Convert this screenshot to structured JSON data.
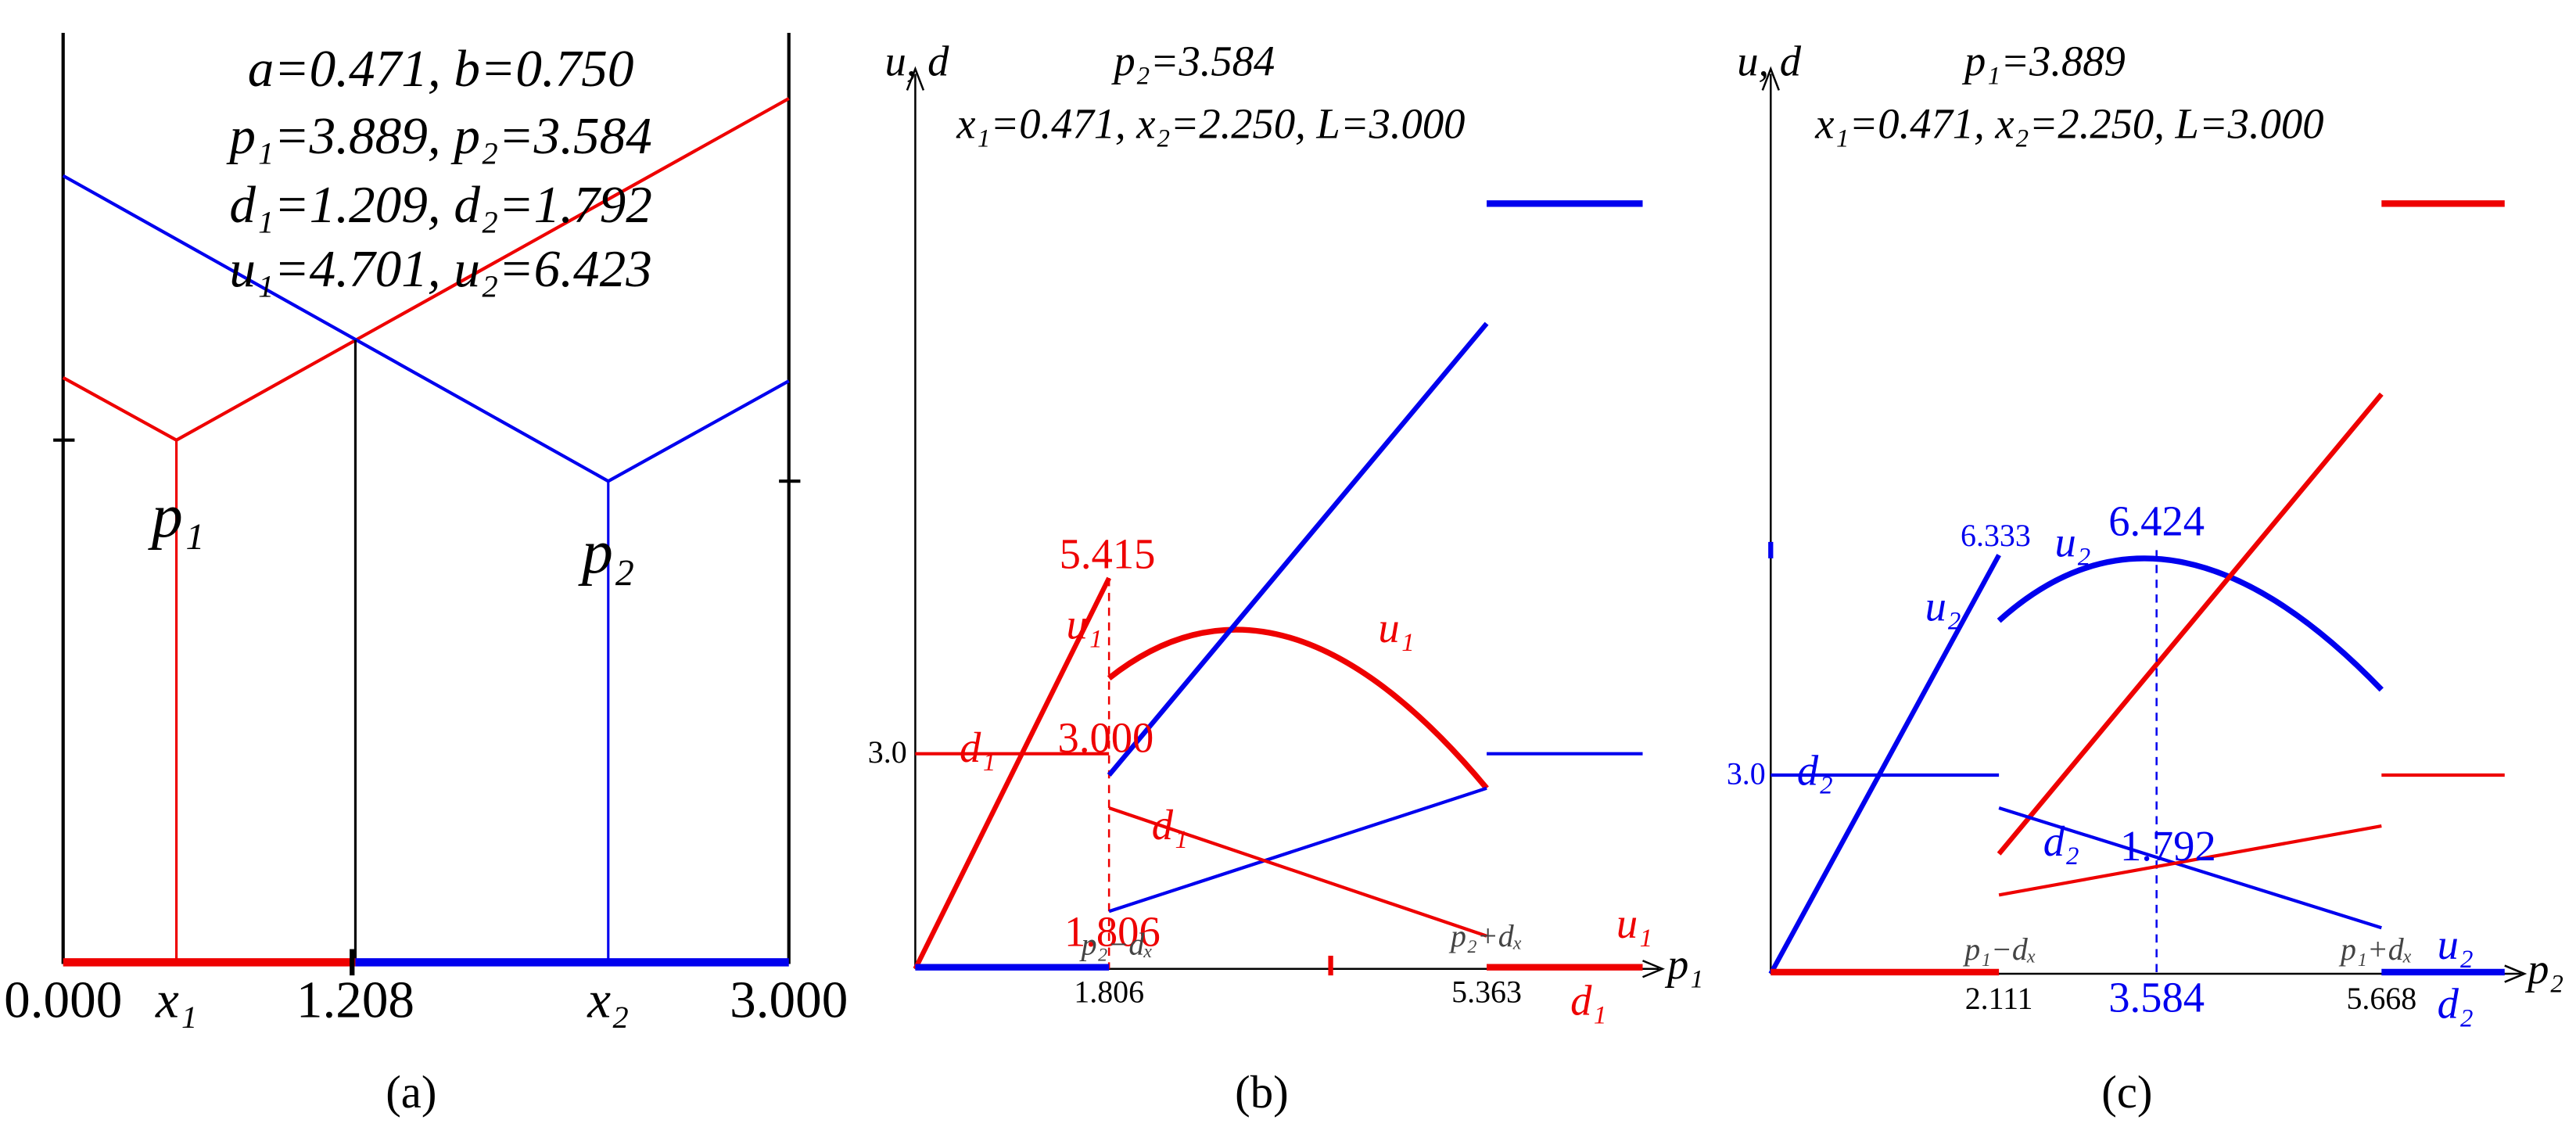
{
  "panels": {
    "a": {
      "annotations": [
        "a=0.471, b=0.750",
        "p₁=3.889, p₂=3.584",
        "d₁=1.209, d₂=1.792",
        "u₁=4.701, u₂=6.423"
      ],
      "point_labels": [
        "p₁",
        "p₂"
      ],
      "axis_labels": [
        "0.000",
        "x₁",
        "1.208",
        "x₂",
        "3.000"
      ],
      "caption": "(a)"
    },
    "b": {
      "y_axis_label": "u, d",
      "x_axis_label": "p₁",
      "title_lines": [
        "p₂=3.584",
        "x₁=0.471, x₂=2.250, L=3.000"
      ],
      "labels": [
        "5.415",
        "u₁",
        "d₁",
        "3.000",
        "3.0",
        "u₁",
        "d₁",
        "1.806",
        "p₂−dₓ",
        "p₂+dₓ",
        "u₁",
        "d₁",
        "1.806",
        "5.363"
      ],
      "caption": "(b)"
    },
    "c": {
      "y_axis_label": "u, d",
      "x_axis_label": "p₂",
      "title_lines": [
        "p₁=3.889",
        "x₁=0.471, x₂=2.250, L=3.000"
      ],
      "labels": [
        "6.333",
        "u₂",
        "6.424",
        "u₂",
        "3.0",
        "d₂",
        "d₂",
        "1.792",
        "p₁−dₓ",
        "p₁+dₓ",
        "u₂",
        "d₂",
        "2.111",
        "3.584",
        "5.668"
      ],
      "caption": "(c)"
    }
  }
}
